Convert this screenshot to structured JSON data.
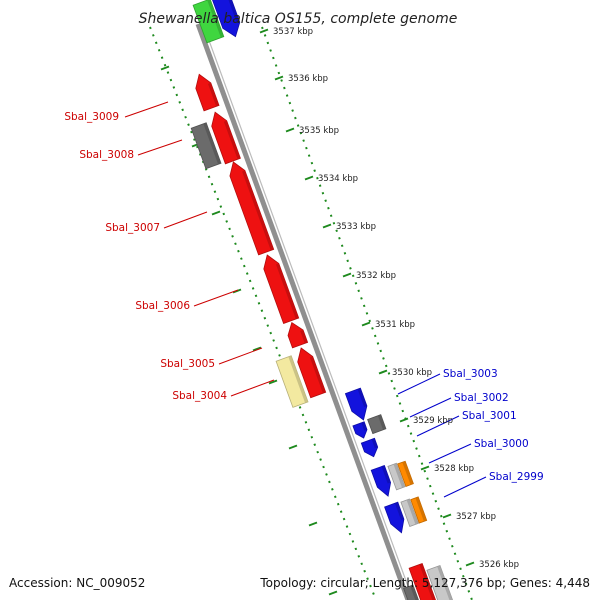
{
  "title": "Shewanella baltica OS155, complete genome",
  "accession": "Accession: NC_009052",
  "summary": "Topology: circular; Length: 5,127,376 bp; Genes: 4,448",
  "colors": {
    "backbone": "#8f8f8f",
    "tick": "#1e8a1e",
    "red": "#ee1111",
    "grey": "#6b6b6b",
    "light_grey": "#c8c8c8",
    "yellow": "#f3e9a0",
    "green": "#3fd63f",
    "blue": "#1313dd",
    "orange": "#ff8a00",
    "label_left": "#cc0000",
    "label_right": "#0000cc"
  },
  "ticks": [
    {
      "kbp": 3537,
      "label": "3537 kbp"
    },
    {
      "kbp": 3536,
      "label": "3536 kbp"
    },
    {
      "kbp": 3535,
      "label": "3535 kbp"
    },
    {
      "kbp": 3534,
      "label": "3534 kbp"
    },
    {
      "kbp": 3533,
      "label": "3533 kbp"
    },
    {
      "kbp": 3532,
      "label": "3532 kbp"
    },
    {
      "kbp": 3531,
      "label": "3531 kbp"
    },
    {
      "kbp": 3530,
      "label": "3530 kbp"
    },
    {
      "kbp": 3529,
      "label": "3529 kbp"
    },
    {
      "kbp": 3528,
      "label": "3528 kbp"
    },
    {
      "kbp": 3527,
      "label": "3527 kbp"
    },
    {
      "kbp": 3526,
      "label": "3526 kbp"
    }
  ],
  "genes_left": [
    {
      "name": "Sbal_3009"
    },
    {
      "name": "Sbal_3008"
    },
    {
      "name": "Sbal_3007"
    },
    {
      "name": "Sbal_3006"
    },
    {
      "name": "Sbal_3005"
    },
    {
      "name": "Sbal_3004"
    }
  ],
  "genes_right": [
    {
      "name": "Sbal_3003"
    },
    {
      "name": "Sbal_3002"
    },
    {
      "name": "Sbal_3001"
    },
    {
      "name": "Sbal_3000"
    },
    {
      "name": "Sbal_2999"
    }
  ]
}
